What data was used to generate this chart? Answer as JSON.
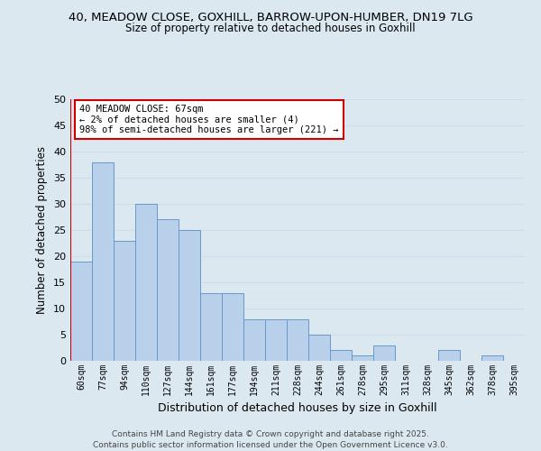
{
  "title_line1": "40, MEADOW CLOSE, GOXHILL, BARROW-UPON-HUMBER, DN19 7LG",
  "title_line2": "Size of property relative to detached houses in Goxhill",
  "xlabel": "Distribution of detached houses by size in Goxhill",
  "ylabel": "Number of detached properties",
  "bar_labels": [
    "60sqm",
    "77sqm",
    "94sqm",
    "110sqm",
    "127sqm",
    "144sqm",
    "161sqm",
    "177sqm",
    "194sqm",
    "211sqm",
    "228sqm",
    "244sqm",
    "261sqm",
    "278sqm",
    "295sqm",
    "311sqm",
    "328sqm",
    "345sqm",
    "362sqm",
    "378sqm",
    "395sqm"
  ],
  "bar_values": [
    19,
    38,
    23,
    30,
    27,
    25,
    13,
    13,
    8,
    8,
    8,
    5,
    2,
    1,
    3,
    0,
    0,
    2,
    0,
    1,
    0
  ],
  "bar_color": "#b8d0ea",
  "bar_edge_color": "#6699cc",
  "ylim": [
    0,
    50
  ],
  "yticks": [
    0,
    5,
    10,
    15,
    20,
    25,
    30,
    35,
    40,
    45,
    50
  ],
  "annotation_title": "40 MEADOW CLOSE: 67sqm",
  "annotation_line1": "← 2% of detached houses are smaller (4)",
  "annotation_line2": "98% of semi-detached houses are larger (221) →",
  "marker_color": "#cc0000",
  "grid_color": "#ccdded",
  "background_color": "#dce8f0",
  "plot_bg_color": "#dce8f0",
  "footer_line1": "Contains HM Land Registry data © Crown copyright and database right 2025.",
  "footer_line2": "Contains public sector information licensed under the Open Government Licence v3.0."
}
